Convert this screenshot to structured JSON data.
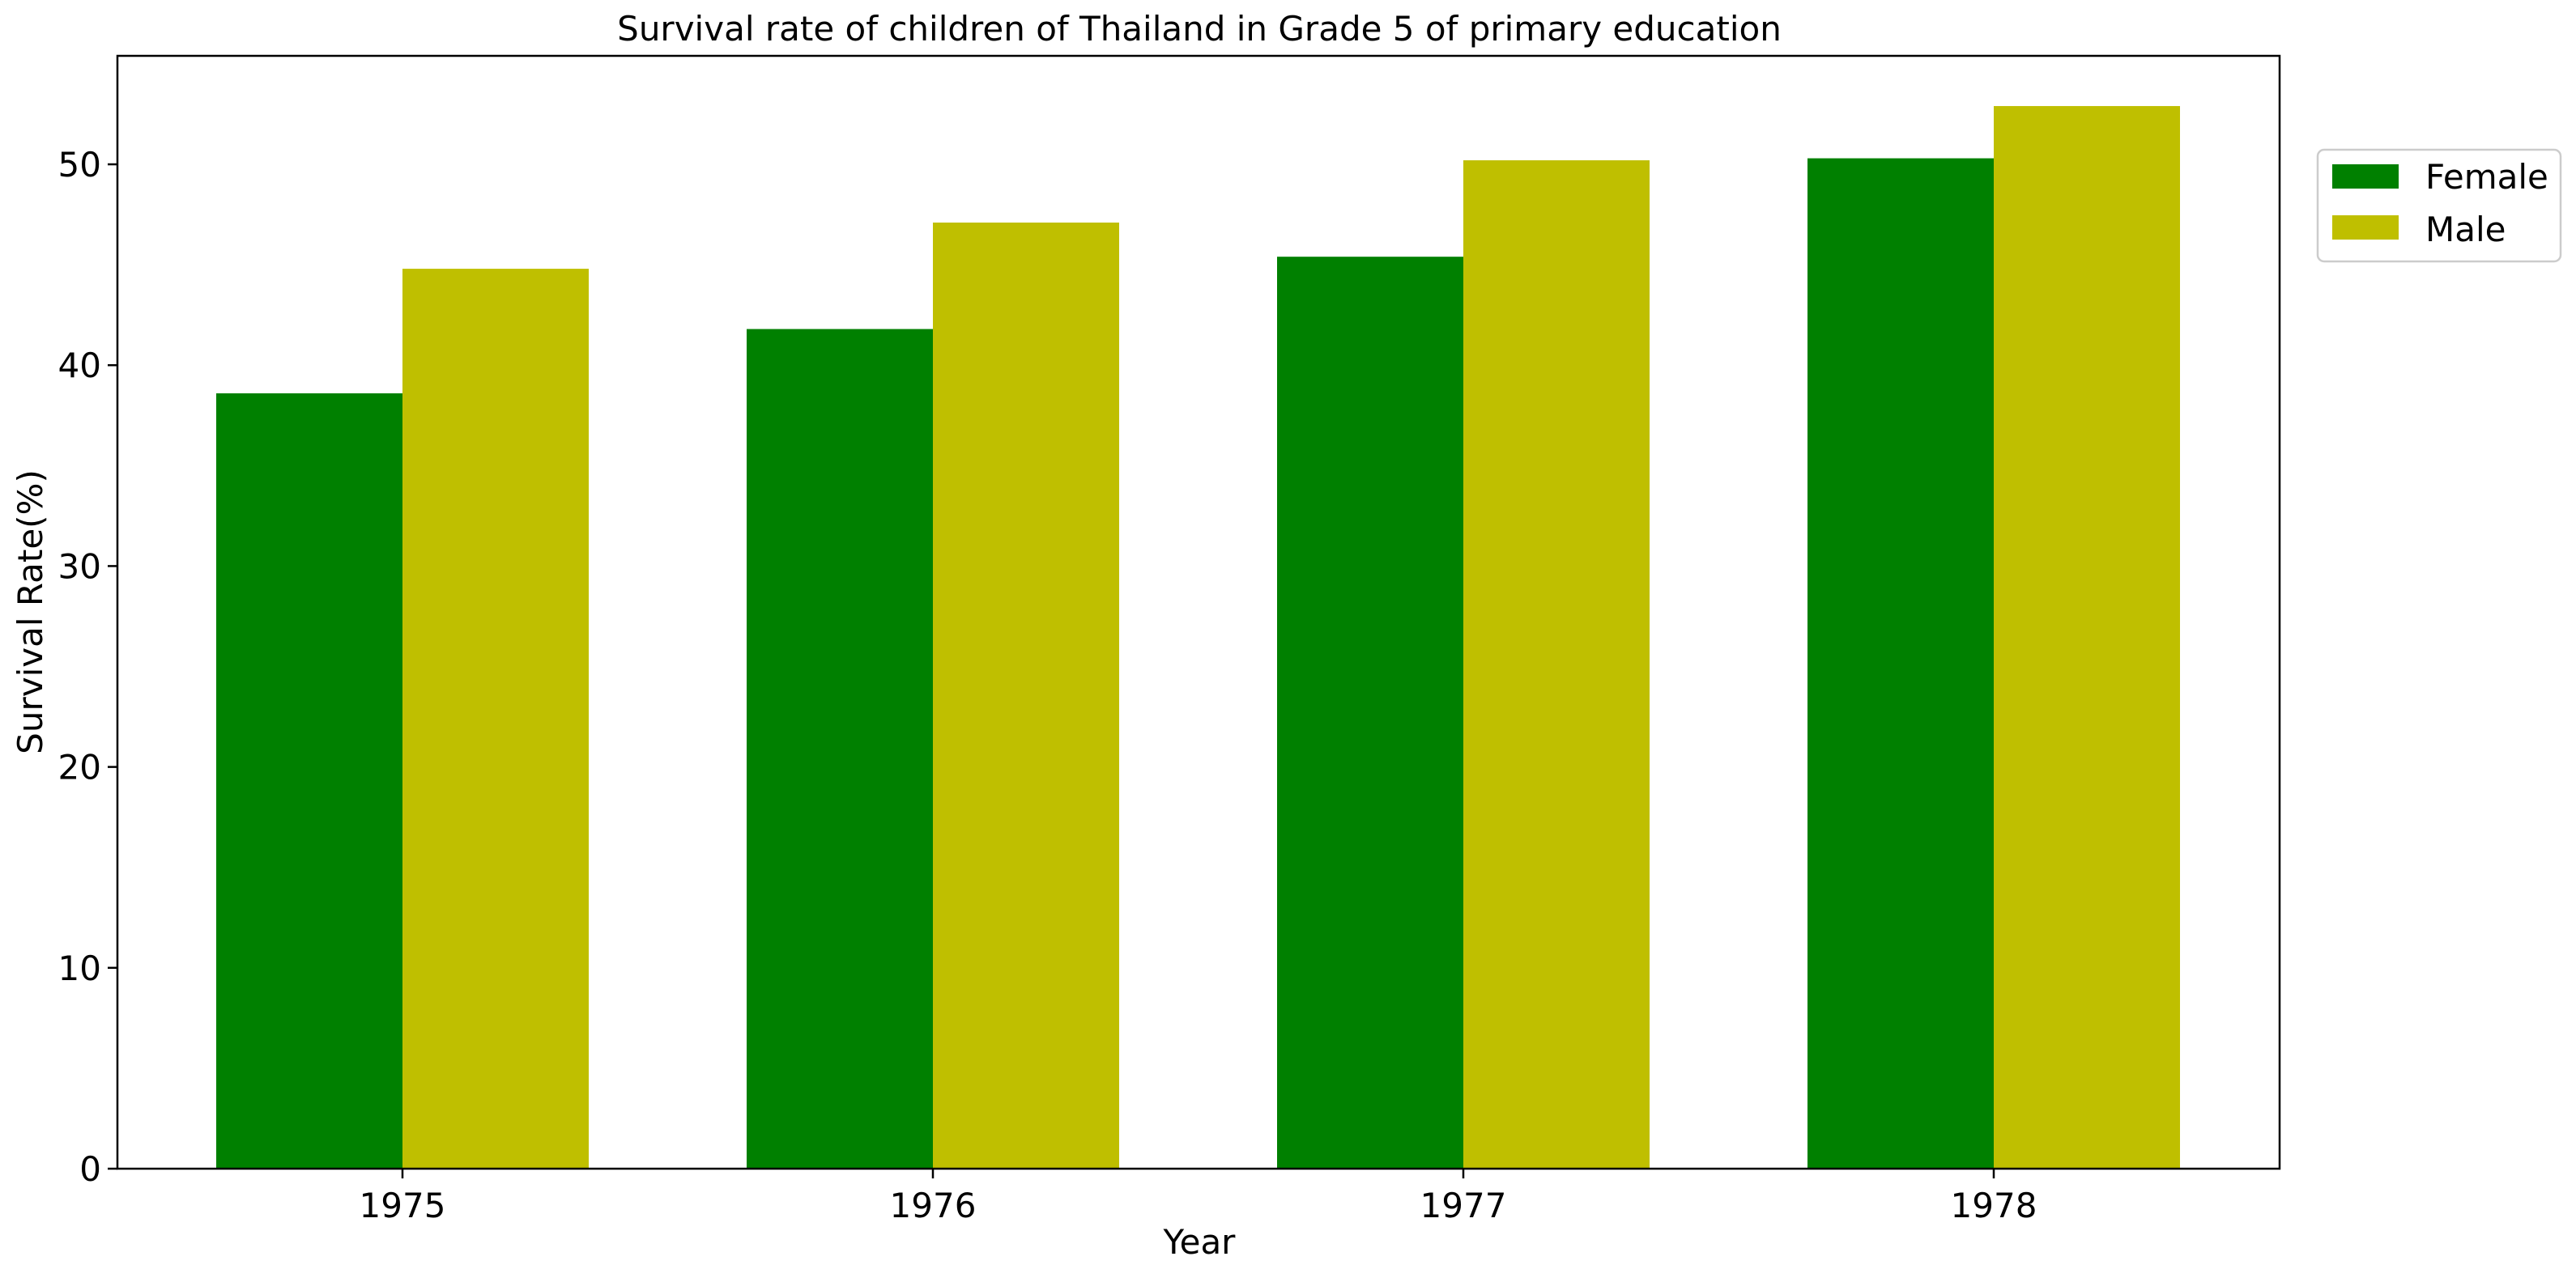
{
  "chart_data": {
    "type": "bar",
    "title": "Survival rate of children of Thailand in Grade 5 of primary education",
    "xlabel": "Year",
    "ylabel": "Survival Rate(%)",
    "categories": [
      "1975",
      "1976",
      "1977",
      "1978"
    ],
    "series": [
      {
        "name": "Female",
        "color": "#008000",
        "values": [
          38.6,
          41.8,
          45.4,
          50.3
        ]
      },
      {
        "name": "Male",
        "color": "#bfbf00",
        "values": [
          44.8,
          47.1,
          50.2,
          52.9
        ]
      }
    ],
    "ylim": [
      0,
      55.4
    ],
    "yticks": [
      0,
      10,
      20,
      30,
      40,
      50
    ],
    "grid": false,
    "legend_position": "outside top-right"
  }
}
